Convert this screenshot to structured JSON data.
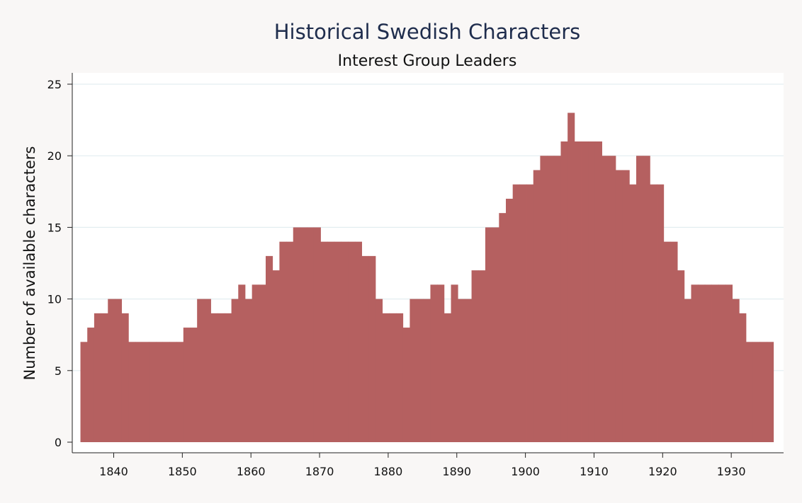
{
  "chart_data": {
    "type": "bar",
    "title": "Historical Swedish Characters",
    "subtitle": "Interest Group Leaders",
    "xlabel": "",
    "ylabel": "Number of available characters",
    "xlim": [
      1835,
      1936
    ],
    "ylim": [
      0,
      25
    ],
    "x_ticks": [
      1840,
      1850,
      1860,
      1870,
      1880,
      1890,
      1900,
      1910,
      1920,
      1930
    ],
    "y_ticks": [
      0,
      5,
      10,
      15,
      20,
      25
    ],
    "grid": true,
    "bar_color": "#b56060",
    "years": [
      1835,
      1836,
      1837,
      1838,
      1839,
      1840,
      1841,
      1842,
      1843,
      1844,
      1845,
      1846,
      1847,
      1848,
      1849,
      1850,
      1851,
      1852,
      1853,
      1854,
      1855,
      1856,
      1857,
      1858,
      1859,
      1860,
      1861,
      1862,
      1863,
      1864,
      1865,
      1866,
      1867,
      1868,
      1869,
      1870,
      1871,
      1872,
      1873,
      1874,
      1875,
      1876,
      1877,
      1878,
      1879,
      1880,
      1881,
      1882,
      1883,
      1884,
      1885,
      1886,
      1887,
      1888,
      1889,
      1890,
      1891,
      1892,
      1893,
      1894,
      1895,
      1896,
      1897,
      1898,
      1899,
      1900,
      1901,
      1902,
      1903,
      1904,
      1905,
      1906,
      1907,
      1908,
      1909,
      1910,
      1911,
      1912,
      1913,
      1914,
      1915,
      1916,
      1917,
      1918,
      1919,
      1920,
      1921,
      1922,
      1923,
      1924,
      1925,
      1926,
      1927,
      1928,
      1929,
      1930,
      1931,
      1932,
      1933,
      1934,
      1935
    ],
    "values": [
      7,
      8,
      9,
      9,
      10,
      10,
      9,
      7,
      7,
      7,
      7,
      7,
      7,
      7,
      7,
      8,
      8,
      10,
      10,
      9,
      9,
      9,
      10,
      11,
      10,
      11,
      11,
      13,
      12,
      14,
      14,
      15,
      15,
      15,
      15,
      14,
      14,
      14,
      14,
      14,
      14,
      13,
      13,
      10,
      9,
      9,
      9,
      8,
      10,
      10,
      10,
      11,
      11,
      9,
      11,
      10,
      10,
      12,
      12,
      15,
      15,
      16,
      17,
      18,
      18,
      18,
      19,
      20,
      20,
      20,
      21,
      23,
      21,
      21,
      21,
      21,
      20,
      20,
      19,
      19,
      18,
      20,
      20,
      18,
      18,
      14,
      14,
      12,
      10,
      11,
      11,
      11,
      11,
      11,
      11,
      10,
      9,
      7,
      7,
      7,
      7
    ]
  }
}
